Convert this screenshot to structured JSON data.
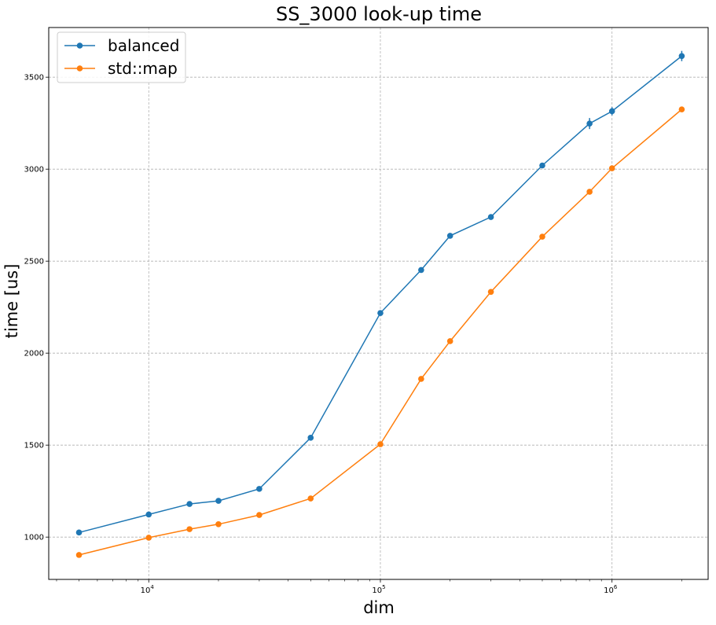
{
  "chart_data": {
    "type": "line",
    "title": "SS_3000 look-up time",
    "xlabel": "dim",
    "ylabel": "time [us]",
    "xscale": "log",
    "xlim": [
      3700,
      2600000
    ],
    "ylim": [
      770,
      3770
    ],
    "grid": true,
    "legend_position": "top-left",
    "x": [
      5000,
      10000,
      15000,
      20000,
      30000,
      50000,
      100000,
      150000,
      200000,
      300000,
      500000,
      800000,
      1000000,
      2000000
    ],
    "series": [
      {
        "name": "balanced",
        "color": "#1f77b4",
        "values": [
          1025,
          1123,
          1180,
          1197,
          1262,
          1540,
          2218,
          2452,
          2638,
          2740,
          3020,
          3248,
          3315,
          3615
        ],
        "errors": [
          0,
          0,
          0,
          0,
          0,
          0,
          0,
          0,
          12,
          0,
          15,
          30,
          22,
          28
        ]
      },
      {
        "name": "std::map",
        "color": "#ff7f0e",
        "values": [
          903,
          997,
          1043,
          1070,
          1120,
          1210,
          1505,
          1860,
          2065,
          2333,
          2633,
          2877,
          3005,
          3325
        ],
        "errors": [
          0,
          0,
          0,
          0,
          0,
          0,
          0,
          0,
          0,
          0,
          0,
          0,
          0,
          0
        ]
      }
    ],
    "x_ticks": [
      {
        "value": 10000,
        "base": "10",
        "exp": "4"
      },
      {
        "value": 100000,
        "base": "10",
        "exp": "5"
      },
      {
        "value": 1000000,
        "base": "10",
        "exp": "6"
      }
    ],
    "y_ticks": [
      1000,
      1500,
      2000,
      2500,
      3000,
      3500
    ]
  }
}
